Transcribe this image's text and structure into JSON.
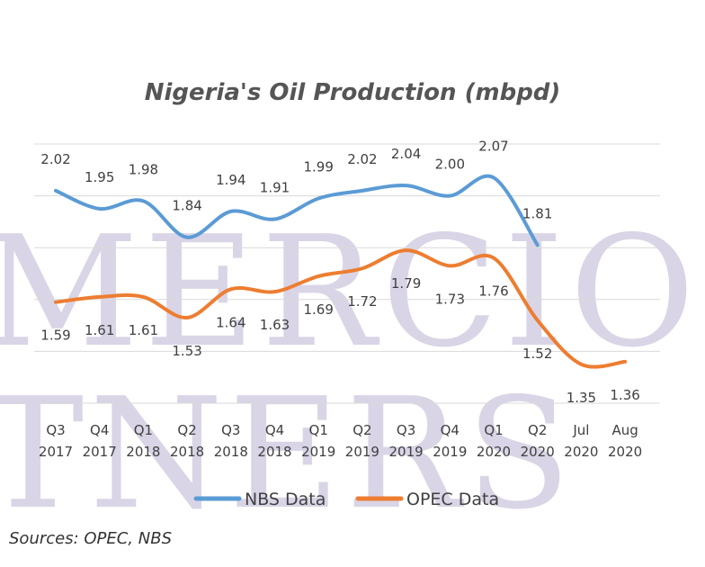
{
  "watermark": {
    "line1": "MERCIO",
    "line2": "TNERS"
  },
  "source": "Sources: OPEC, NBS",
  "chart_data": {
    "type": "line",
    "title": "Nigeria's Oil Production (mbpd)",
    "xlabel": "",
    "ylabel": "",
    "categories": [
      [
        "Q3",
        "2017"
      ],
      [
        "Q4",
        "2017"
      ],
      [
        "Q1",
        "2018"
      ],
      [
        "Q2",
        "2018"
      ],
      [
        "Q3",
        "2018"
      ],
      [
        "Q4",
        "2018"
      ],
      [
        "Q1",
        "2019"
      ],
      [
        "Q2",
        "2019"
      ],
      [
        "Q3",
        "2019"
      ],
      [
        "Q4",
        "2019"
      ],
      [
        "Q1",
        "2020"
      ],
      [
        "Q2",
        "2020"
      ],
      [
        "Jul",
        "2020"
      ],
      [
        "Aug",
        "2020"
      ]
    ],
    "series": [
      {
        "name": "NBS Data",
        "color": "#5b9bd5",
        "values": [
          2.02,
          1.95,
          1.98,
          1.84,
          1.94,
          1.91,
          1.99,
          2.02,
          2.04,
          2.0,
          2.07,
          1.81,
          null,
          null
        ],
        "labels": [
          "2.02",
          "1.95",
          "1.98",
          "1.84",
          "1.94",
          "1.91",
          "1.99",
          "2.02",
          "2.04",
          "2.00",
          "2.07",
          "1.81",
          null,
          null
        ]
      },
      {
        "name": "OPEC Data",
        "color": "#ed7d31",
        "values": [
          1.59,
          1.61,
          1.61,
          1.53,
          1.64,
          1.63,
          1.69,
          1.72,
          1.79,
          1.73,
          1.76,
          1.52,
          1.35,
          1.36
        ],
        "labels": [
          "1.59",
          "1.61",
          "1.61",
          "1.53",
          "1.64",
          "1.63",
          "1.69",
          "1.72",
          "1.79",
          "1.73",
          "1.76",
          "1.52",
          "1.35",
          "1.36"
        ]
      }
    ],
    "ylim": [
      1.2,
      2.2
    ],
    "grid": true,
    "legend": "bottom"
  }
}
